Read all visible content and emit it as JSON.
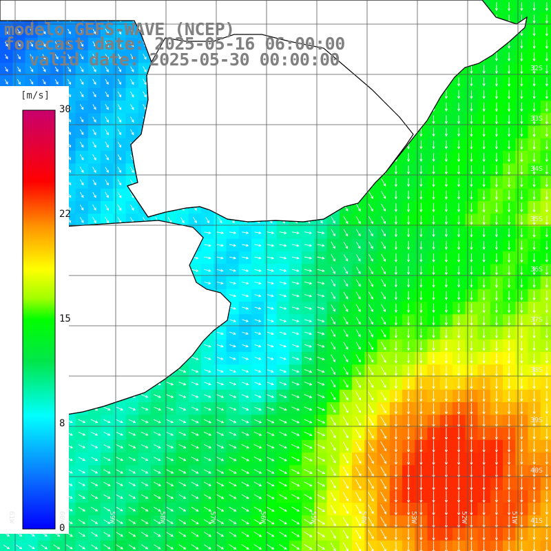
{
  "title": {
    "line1": "modelo GEFS-WAVE (NCEP)",
    "line2": "forecast date: 2025-05-16 06:00:00",
    "line3": "valid date: 2025-05-30 00:00:00"
  },
  "colorbar": {
    "unit": "[m/s]",
    "min": 0,
    "max": 30,
    "ticks": [
      "30",
      "22",
      "15",
      "8",
      "0"
    ],
    "tick_values": [
      30,
      22,
      15,
      8,
      0
    ],
    "colors": [
      "#0000ff",
      "#00c8ff",
      "#00ffff",
      "#00e61e",
      "#00ff00",
      "#ffff00",
      "#ff9600",
      "#ff0000",
      "#c8006e"
    ]
  },
  "latitude_labels": [
    "32S",
    "33S",
    "34S",
    "35S",
    "36S",
    "37S",
    "38S",
    "39S",
    "40S",
    "41S"
  ],
  "longitude_labels": [
    "61W",
    "60W",
    "59W",
    "58W",
    "57W",
    "56W",
    "55W",
    "54W",
    "53W",
    "52W",
    "51W"
  ],
  "map": {
    "land_color": "#ffffff",
    "grid_color": "#555555",
    "coast_color": "#000000",
    "arrow_color": "#ffffff"
  }
}
